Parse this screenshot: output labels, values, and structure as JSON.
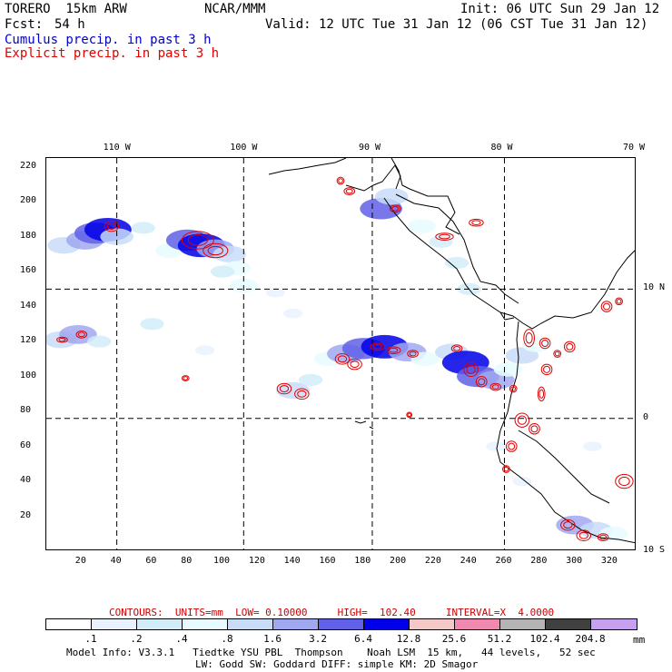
{
  "header": {
    "model": "TORERO  15km ARW",
    "org": "NCAR/MMM",
    "init": "Init: 06 UTC Sun 29 Jan 12",
    "fcst_label": "Fcst:",
    "fcst_value": "54 h",
    "valid": "Valid: 12 UTC Tue 31 Jan 12 (06 CST Tue 31 Jan 12)",
    "legend_cumulus": "Cumulus precip. in past 3 h",
    "legend_explicit": "Explicit precip. in past 3 h"
  },
  "colors": {
    "cumulus_text": "#0000cc",
    "explicit_text": "#e00000",
    "contour_red": "#e00000",
    "footer_red": "#cc0000"
  },
  "map": {
    "lon_labels": [
      "110 W",
      "100 W",
      "90 W",
      "80 W",
      "70 W"
    ],
    "lat_labels": [
      "10 N",
      "0",
      "10 S"
    ],
    "y_ticks": [
      "220",
      "200",
      "180",
      "160",
      "140",
      "120",
      "100",
      "80",
      "60",
      "40",
      "20"
    ],
    "x_ticks": [
      "20",
      "40",
      "60",
      "80",
      "100",
      "120",
      "140",
      "160",
      "180",
      "200",
      "220",
      "240",
      "260",
      "280",
      "300",
      "320"
    ],
    "grid_x_values": [
      40,
      112,
      185,
      260
    ],
    "grid_y_values": [
      150,
      76
    ],
    "x_range": [
      0,
      335
    ],
    "y_range": [
      0,
      225
    ],
    "precip_areas": [
      {
        "x": 10,
        "y": 175,
        "level": 4
      },
      {
        "x": 22,
        "y": 178,
        "level": 5
      },
      {
        "x": 28,
        "y": 182,
        "level": 6
      },
      {
        "x": 35,
        "y": 184,
        "level": 7
      },
      {
        "x": 40,
        "y": 180,
        "level": 4
      },
      {
        "x": 55,
        "y": 185,
        "level": 2
      },
      {
        "x": 70,
        "y": 172,
        "level": 3
      },
      {
        "x": 80,
        "y": 178,
        "level": 6
      },
      {
        "x": 88,
        "y": 175,
        "level": 7
      },
      {
        "x": 96,
        "y": 173,
        "level": 5
      },
      {
        "x": 104,
        "y": 170,
        "level": 4
      },
      {
        "x": 108,
        "y": 162,
        "level": 3
      },
      {
        "x": 100,
        "y": 160,
        "level": 2
      },
      {
        "x": 112,
        "y": 152,
        "level": 3
      },
      {
        "x": 8,
        "y": 121,
        "level": 4
      },
      {
        "x": 18,
        "y": 124,
        "level": 5
      },
      {
        "x": 30,
        "y": 120,
        "level": 2
      },
      {
        "x": 60,
        "y": 130,
        "level": 2
      },
      {
        "x": 90,
        "y": 115,
        "level": 1
      },
      {
        "x": 130,
        "y": 148,
        "level": 1
      },
      {
        "x": 140,
        "y": 136,
        "level": 1
      },
      {
        "x": 160,
        "y": 110,
        "level": 3
      },
      {
        "x": 170,
        "y": 113,
        "level": 5
      },
      {
        "x": 180,
        "y": 116,
        "level": 6
      },
      {
        "x": 192,
        "y": 117,
        "level": 7
      },
      {
        "x": 205,
        "y": 114,
        "level": 5
      },
      {
        "x": 215,
        "y": 110,
        "level": 3
      },
      {
        "x": 230,
        "y": 114,
        "level": 4
      },
      {
        "x": 238,
        "y": 108,
        "level": 7
      },
      {
        "x": 245,
        "y": 100,
        "level": 6
      },
      {
        "x": 255,
        "y": 98,
        "level": 5
      },
      {
        "x": 262,
        "y": 104,
        "level": 3
      },
      {
        "x": 270,
        "y": 112,
        "level": 4
      },
      {
        "x": 278,
        "y": 118,
        "level": 3
      },
      {
        "x": 140,
        "y": 92,
        "level": 4
      },
      {
        "x": 150,
        "y": 98,
        "level": 2
      },
      {
        "x": 190,
        "y": 196,
        "level": 6
      },
      {
        "x": 196,
        "y": 203,
        "level": 4
      },
      {
        "x": 213,
        "y": 186,
        "level": 3
      },
      {
        "x": 224,
        "y": 177,
        "level": 2
      },
      {
        "x": 233,
        "y": 165,
        "level": 2
      },
      {
        "x": 240,
        "y": 150,
        "level": 2
      },
      {
        "x": 255,
        "y": 60,
        "level": 1
      },
      {
        "x": 270,
        "y": 40,
        "level": 1
      },
      {
        "x": 300,
        "y": 15,
        "level": 5
      },
      {
        "x": 312,
        "y": 12,
        "level": 4
      },
      {
        "x": 322,
        "y": 10,
        "level": 3
      },
      {
        "x": 310,
        "y": 60,
        "level": 1
      }
    ],
    "contours": [
      {
        "x": 37,
        "y": 186,
        "rx": 4,
        "ry": 3
      },
      {
        "x": 86,
        "y": 178,
        "rx": 9,
        "ry": 5
      },
      {
        "x": 96,
        "y": 172,
        "rx": 7,
        "ry": 4
      },
      {
        "x": 9,
        "y": 121,
        "rx": 3,
        "ry": 1.5
      },
      {
        "x": 20,
        "y": 124,
        "rx": 3,
        "ry": 2
      },
      {
        "x": 79,
        "y": 99,
        "rx": 2,
        "ry": 1.5
      },
      {
        "x": 135,
        "y": 93,
        "rx": 4,
        "ry": 3
      },
      {
        "x": 145,
        "y": 90,
        "rx": 4,
        "ry": 3
      },
      {
        "x": 168,
        "y": 110,
        "rx": 4,
        "ry": 3
      },
      {
        "x": 175,
        "y": 107,
        "rx": 4,
        "ry": 3
      },
      {
        "x": 188,
        "y": 117,
        "rx": 4,
        "ry": 2
      },
      {
        "x": 197,
        "y": 115,
        "rx": 4,
        "ry": 2
      },
      {
        "x": 208,
        "y": 113,
        "rx": 3,
        "ry": 2
      },
      {
        "x": 233,
        "y": 116,
        "rx": 3,
        "ry": 2
      },
      {
        "x": 241,
        "y": 104,
        "rx": 4,
        "ry": 4
      },
      {
        "x": 247,
        "y": 97,
        "rx": 3,
        "ry": 3
      },
      {
        "x": 255,
        "y": 94,
        "rx": 3,
        "ry": 2
      },
      {
        "x": 265,
        "y": 93,
        "rx": 2,
        "ry": 2
      },
      {
        "x": 274,
        "y": 122,
        "rx": 3,
        "ry": 5
      },
      {
        "x": 283,
        "y": 119,
        "rx": 3,
        "ry": 3
      },
      {
        "x": 284,
        "y": 104,
        "rx": 3,
        "ry": 3
      },
      {
        "x": 281,
        "y": 90,
        "rx": 2,
        "ry": 4
      },
      {
        "x": 290,
        "y": 113,
        "rx": 2,
        "ry": 2
      },
      {
        "x": 297,
        "y": 117,
        "rx": 3,
        "ry": 3
      },
      {
        "x": 318,
        "y": 140,
        "rx": 3,
        "ry": 3
      },
      {
        "x": 325,
        "y": 143,
        "rx": 2,
        "ry": 2
      },
      {
        "x": 270,
        "y": 75,
        "rx": 4,
        "ry": 4
      },
      {
        "x": 277,
        "y": 70,
        "rx": 3,
        "ry": 3
      },
      {
        "x": 264,
        "y": 60,
        "rx": 3,
        "ry": 3
      },
      {
        "x": 261,
        "y": 47,
        "rx": 2,
        "ry": 2
      },
      {
        "x": 296,
        "y": 15,
        "rx": 4,
        "ry": 3
      },
      {
        "x": 305,
        "y": 9,
        "rx": 4,
        "ry": 3
      },
      {
        "x": 316,
        "y": 8,
        "rx": 3,
        "ry": 2
      },
      {
        "x": 328,
        "y": 40,
        "rx": 5,
        "ry": 4
      },
      {
        "x": 198,
        "y": 196,
        "rx": 3,
        "ry": 2
      },
      {
        "x": 172,
        "y": 206,
        "rx": 3,
        "ry": 2
      },
      {
        "x": 167,
        "y": 212,
        "rx": 2,
        "ry": 2
      },
      {
        "x": 226,
        "y": 180,
        "rx": 5,
        "ry": 2
      },
      {
        "x": 244,
        "y": 188,
        "rx": 4,
        "ry": 2
      },
      {
        "x": 206,
        "y": 78,
        "rx": 1.5,
        "ry": 1.5
      }
    ]
  },
  "footer": {
    "contours_line": "CONTOURS:  UNITS=mm  LOW= 0.10000     HIGH=  102.40     INTERVAL=X  4.0000",
    "scale_labels": [
      ".1",
      ".2",
      ".4",
      ".8",
      "1.6",
      "3.2",
      "6.4",
      "12.8",
      "25.6",
      "51.2",
      "102.4",
      "204.8"
    ],
    "scale_unit": "mm",
    "scale_colors": [
      "#ffffff",
      "#e8f2ff",
      "#d2ecf8",
      "#e8fbff",
      "#c8dcf8",
      "#a0a8f0",
      "#6060e8",
      "#0000e8",
      "#f4c8c8",
      "#f088b0",
      "#b4b4b4",
      "#404040",
      "#c8a0f0"
    ],
    "model_info_line1": "Model Info: V3.3.1   Tiedtke YSU PBL  Thompson    Noah LSM  15 km,   44 levels,   52 sec",
    "model_info_line2": "LW: Godd SW: Goddard DIFF: simple KM: 2D Smagor"
  }
}
